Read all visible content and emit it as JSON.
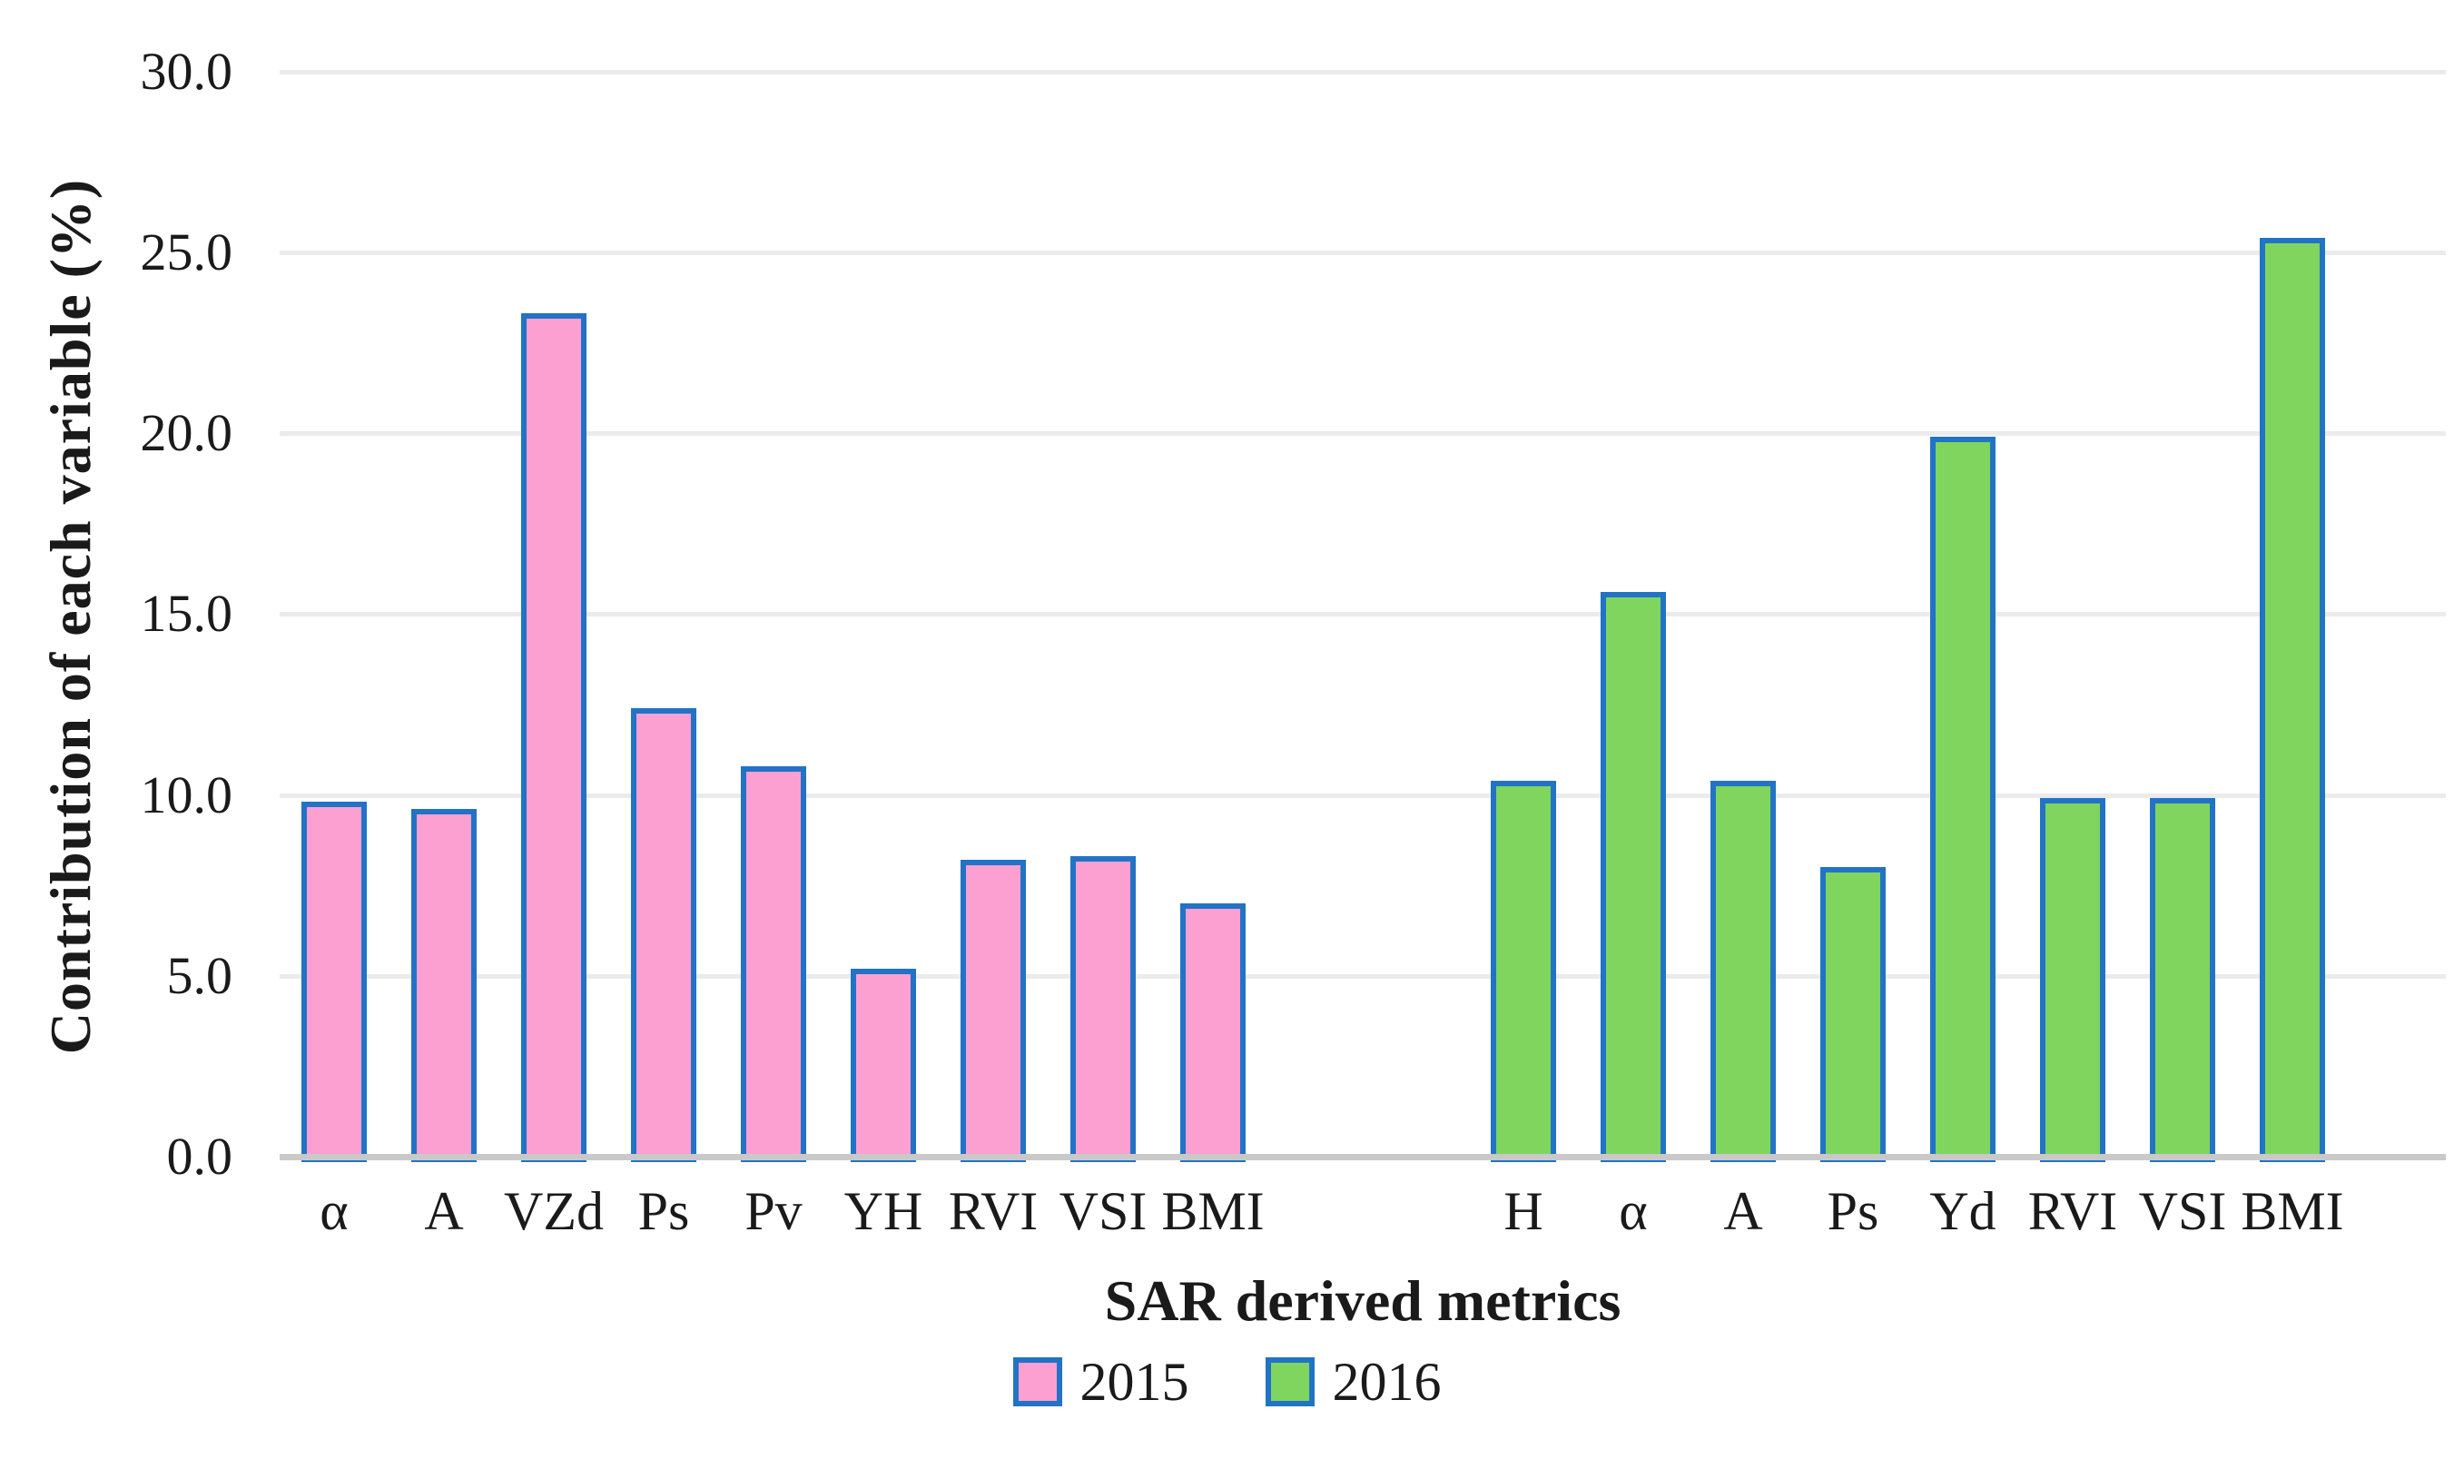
{
  "figure": {
    "y_axis_title": "Contribution of each variable (%)",
    "x_axis_title": "SAR derived metrics"
  },
  "legend": {
    "items": [
      {
        "label": "2015",
        "color": "#FCA0D2"
      },
      {
        "label": "2016",
        "color": "#7FD55E"
      }
    ]
  },
  "colors": {
    "bar_border": "#2273C6",
    "pink_fill": "#FCA0D2",
    "green_fill": "#7FD55E",
    "gridline": "#EBEBEB",
    "axis_line": "#C9C9C9"
  },
  "chart_data": {
    "type": "bar",
    "title": "",
    "xlabel": "SAR derived metrics",
    "ylabel": "Contribution of each variable (%)",
    "ylim": [
      0,
      30
    ],
    "ytick_step": 5,
    "ytick_format_decimals": 1,
    "grid": true,
    "legend_position": "bottom",
    "series": [
      {
        "name": "2015",
        "fill": "#FCA0D2",
        "border": "#2273C6",
        "categories": [
          "α",
          "A",
          "VZd",
          "Ps",
          "Pv",
          "YH",
          "RVI",
          "VSI",
          "BMI"
        ],
        "values": [
          9.8,
          9.6,
          23.3,
          12.4,
          10.8,
          5.2,
          8.2,
          8.3,
          7.0
        ]
      },
      {
        "name": "2016",
        "fill": "#7FD55E",
        "border": "#2273C6",
        "categories": [
          "H",
          "α",
          "A",
          "Ps",
          "Yd",
          "RVI",
          "VSI",
          "BMI"
        ],
        "values": [
          10.4,
          15.6,
          10.4,
          8.0,
          19.9,
          9.9,
          9.9,
          25.4
        ]
      }
    ]
  }
}
